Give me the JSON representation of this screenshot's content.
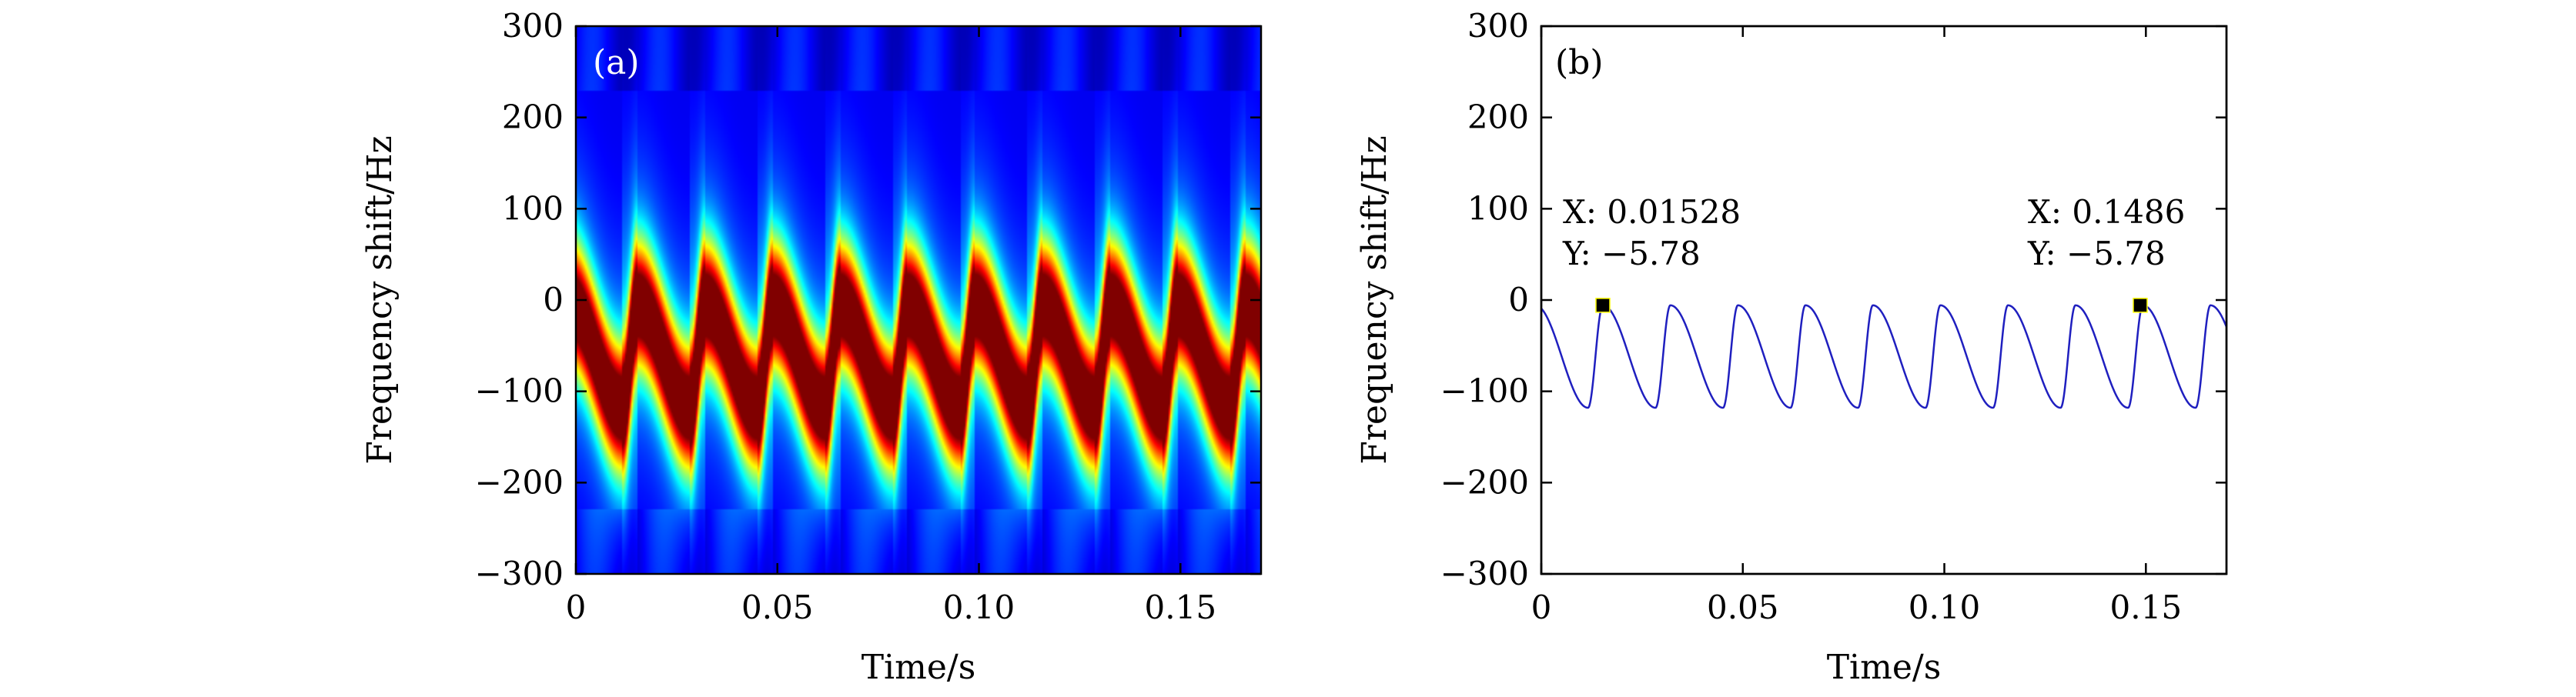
{
  "chart_data": [
    {
      "panel_label": "(a)",
      "type": "heatmap",
      "xlabel": "Time/s",
      "ylabel": "Frequency shift/Hz",
      "xlim": [
        0,
        0.17
      ],
      "ylim": [
        -300,
        300
      ],
      "x_ticks": [
        "0",
        "0.05",
        "0.10",
        "0.15"
      ],
      "y_ticks": [
        "300",
        "200",
        "100",
        "0",
        "−100",
        "−200",
        "−300"
      ],
      "colormap": "jet",
      "description_values": {
        "period": 0.01675,
        "ridge_max": -5.78,
        "ridge_min": -118
      },
      "colors": {
        "low": "#00008f",
        "high": "#800000"
      }
    },
    {
      "panel_label": "(b)",
      "type": "line",
      "xlabel": "Time/s",
      "ylabel": "Frequency shift/Hz",
      "xlim": [
        0,
        0.17
      ],
      "ylim": [
        -300,
        300
      ],
      "x_ticks": [
        "0",
        "0.05",
        "0.10",
        "0.15"
      ],
      "y_ticks": [
        "300",
        "200",
        "100",
        "0",
        "−100",
        "−200",
        "−300"
      ],
      "series": [
        {
          "color": "#1f1fbf",
          "period": 0.01675,
          "peak_at": 0.01528,
          "max": -5.78,
          "min": -118
        }
      ],
      "datatips": [
        {
          "x_text": "X: 0.01528",
          "y_text": "Y: −5.78",
          "x": 0.01528,
          "y": -5.78,
          "align": "left"
        },
        {
          "x_text": "X: 0.1486",
          "y_text": "Y: −5.78",
          "x": 0.1486,
          "y": -5.78,
          "align": "left"
        }
      ]
    }
  ]
}
